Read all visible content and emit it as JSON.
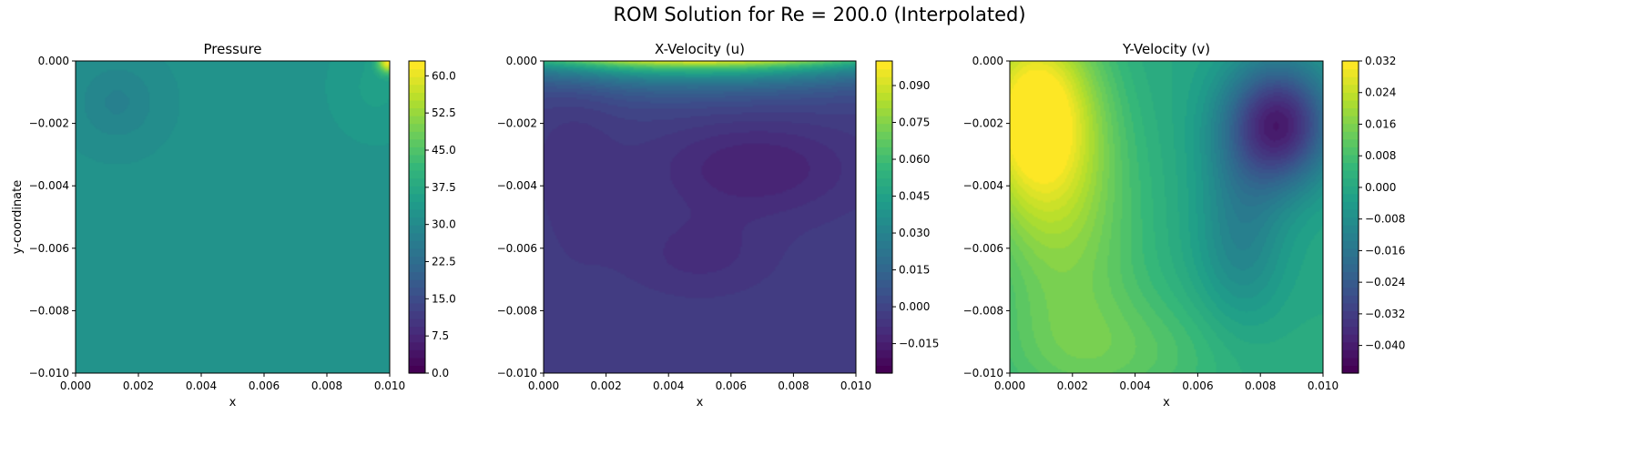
{
  "suptitle": "ROM Solution for Re = 200.0 (Interpolated)",
  "colormap": "viridis",
  "colors": {
    "viridis_stops": [
      "#440154",
      "#482878",
      "#3e4989",
      "#31688e",
      "#26828e",
      "#1f9e89",
      "#35b779",
      "#6ece58",
      "#b5de2b",
      "#fde725"
    ]
  },
  "chart_data": [
    {
      "type": "heatmap",
      "title": "Pressure",
      "xlabel": "x",
      "ylabel": "y-coordinate",
      "xlim": [
        0.0,
        0.01
      ],
      "ylim": [
        -0.01,
        0.0
      ],
      "x_ticks": [
        "0.000",
        "0.002",
        "0.004",
        "0.006",
        "0.008",
        "0.010"
      ],
      "y_ticks": [
        "0.000",
        "−0.002",
        "−0.004",
        "−0.006",
        "−0.008",
        "−0.010"
      ],
      "colorbar": {
        "min": 0.0,
        "max": 63.0,
        "ticks": [
          "0.0",
          "7.5",
          "15.0",
          "22.5",
          "30.0",
          "37.5",
          "45.0",
          "52.5",
          "60.0"
        ]
      },
      "field": "pressure"
    },
    {
      "type": "heatmap",
      "title": "X-Velocity (u)",
      "xlabel": "x",
      "ylabel": "",
      "xlim": [
        0.0,
        0.01
      ],
      "ylim": [
        -0.01,
        0.0
      ],
      "x_ticks": [
        "0.000",
        "0.002",
        "0.004",
        "0.006",
        "0.008",
        "0.010"
      ],
      "y_ticks": [
        "0.000",
        "−0.002",
        "−0.004",
        "−0.006",
        "−0.008",
        "−0.010"
      ],
      "colorbar": {
        "min": -0.027,
        "max": 0.1,
        "ticks": [
          "−0.015",
          "0.000",
          "0.015",
          "0.030",
          "0.045",
          "0.060",
          "0.075",
          "0.090"
        ]
      },
      "field": "u"
    },
    {
      "type": "heatmap",
      "title": "Y-Velocity (v)",
      "xlabel": "x",
      "ylabel": "",
      "xlim": [
        0.0,
        0.01
      ],
      "ylim": [
        -0.01,
        0.0
      ],
      "x_ticks": [
        "0.000",
        "0.002",
        "0.004",
        "0.006",
        "0.008",
        "0.010"
      ],
      "y_ticks": [
        "0.000",
        "−0.002",
        "−0.004",
        "−0.006",
        "−0.008",
        "−0.010"
      ],
      "colorbar": {
        "min": -0.047,
        "max": 0.032,
        "ticks": [
          "−0.040",
          "−0.032",
          "−0.024",
          "−0.016",
          "−0.008",
          "0.000",
          "0.008",
          "0.016",
          "0.024",
          "0.032"
        ]
      },
      "field": "v"
    }
  ]
}
